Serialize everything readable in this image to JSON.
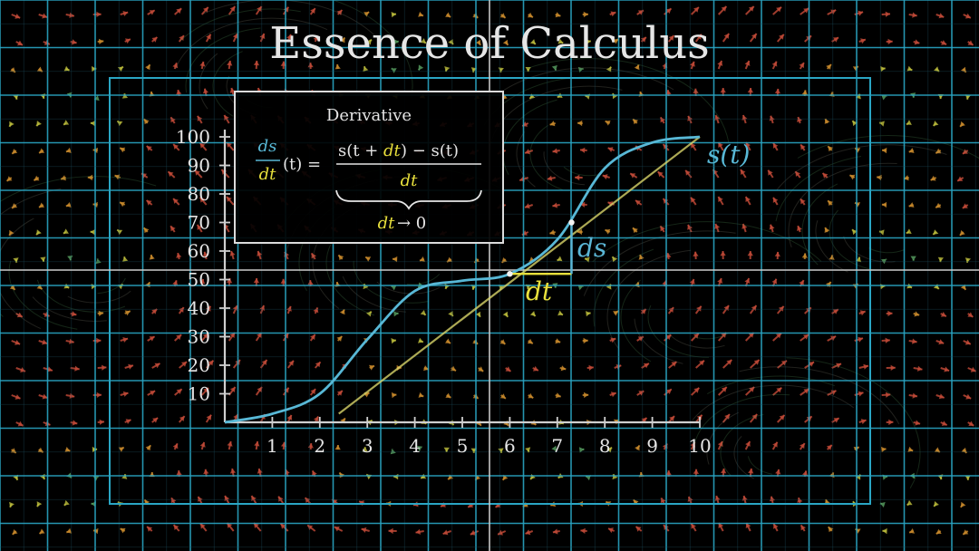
{
  "title": "Essence of Calculus",
  "colors": {
    "background": "#000000",
    "grid_blue": "#2aa6c4",
    "grid_dim": "#1d4e5e",
    "axis_gray": "#cfcfcf",
    "curve_blue": "#58b8d6",
    "tangent_yellow": "#d8d46a",
    "dt_yellow": "#e8e03c",
    "ds_blue": "#5bb6d6",
    "text_white": "#e6e6e6",
    "arrow_red": "#c24a38",
    "arrow_orange": "#c98a2c",
    "arrow_yellow": "#bcbc3c",
    "arrow_green": "#58a062",
    "stream_gray": "#8c8c78"
  },
  "formula_box": {
    "heading": "Derivative",
    "lhs_ds": "ds",
    "lhs_dt": "dt",
    "lhs_arg": "(t) =",
    "num_s": "s(t +",
    "num_dt": "dt",
    "num_rest": ") − s(t)",
    "den": "dt",
    "limit_dt": "dt",
    "limit_rest": "→ 0"
  },
  "chart_data": {
    "type": "line",
    "x": {
      "ticks": [
        1,
        2,
        3,
        4,
        5,
        6,
        7,
        8,
        9,
        10
      ],
      "range": [
        0,
        10
      ]
    },
    "y": {
      "ticks": [
        10,
        20,
        30,
        40,
        50,
        60,
        70,
        80,
        90,
        100
      ],
      "range": [
        0,
        100
      ]
    },
    "series": [
      {
        "name": "s(t)",
        "points": [
          [
            0,
            0
          ],
          [
            1,
            3
          ],
          [
            2,
            10
          ],
          [
            3,
            29
          ],
          [
            4,
            46
          ],
          [
            5,
            49.6
          ],
          [
            6,
            52
          ],
          [
            7,
            64
          ],
          [
            8,
            89
          ],
          [
            9,
            98
          ],
          [
            10,
            100
          ]
        ]
      }
    ],
    "tangent_through": [
      [
        2.4,
        3
      ],
      [
        10,
        100
      ]
    ],
    "secant_points": [
      [
        6,
        52
      ],
      [
        7.3,
        70
      ]
    ],
    "labels": {
      "curve": "s(t)",
      "dt": "dt",
      "ds": "ds"
    }
  }
}
